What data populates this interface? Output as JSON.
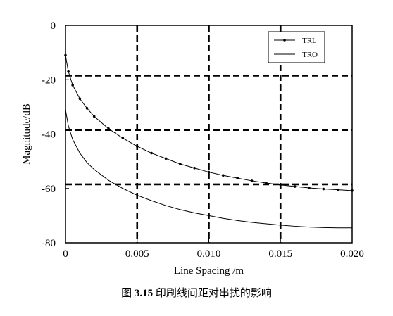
{
  "chart_data": {
    "type": "line",
    "xlabel": "Line Spacing /m",
    "ylabel": "Magnitude/dB",
    "xlim": [
      0,
      0.02
    ],
    "ylim": [
      -80,
      0
    ],
    "x_tick_labels": [
      "0",
      "0.005",
      "0.010",
      "0.015",
      "0.020"
    ],
    "y_tick_labels": [
      "0",
      "-20",
      "-40",
      "-60",
      "-80"
    ],
    "legend_position": "top-right",
    "dashed_gridlines": {
      "x": [
        0.005,
        0.01,
        0.015
      ],
      "y": [
        -18.5,
        -38.5,
        -58.5
      ]
    },
    "x": [
      0,
      0.0002,
      0.0005,
      0.001,
      0.0015,
      0.002,
      0.003,
      0.004,
      0.005,
      0.006,
      0.007,
      0.008,
      0.009,
      0.01,
      0.011,
      0.012,
      0.013,
      0.014,
      0.015,
      0.016,
      0.017,
      0.018,
      0.019,
      0.02
    ],
    "series": [
      {
        "name": "TRL",
        "style": "dotted-markers",
        "color": "#000000",
        "values": [
          -11,
          -17,
          -22,
          -27,
          -30.5,
          -33.5,
          -38,
          -41.5,
          -44.5,
          -47,
          -49,
          -51,
          -52.5,
          -54,
          -55.2,
          -56.2,
          -57.2,
          -58,
          -58.7,
          -59.3,
          -59.8,
          -60.2,
          -60.5,
          -60.8
        ]
      },
      {
        "name": "TRO",
        "style": "solid",
        "color": "#000000",
        "values": [
          -31,
          -37,
          -42,
          -47,
          -50.5,
          -53,
          -57,
          -60,
          -62.5,
          -64.5,
          -66.3,
          -67.8,
          -69,
          -70,
          -71,
          -71.8,
          -72.5,
          -73,
          -73.5,
          -73.9,
          -74.2,
          -74.4,
          -74.5,
          -74.5
        ]
      }
    ]
  },
  "caption": {
    "prefix": "图",
    "number": "3.15",
    "text": "印刷线间距对串扰的影响"
  }
}
